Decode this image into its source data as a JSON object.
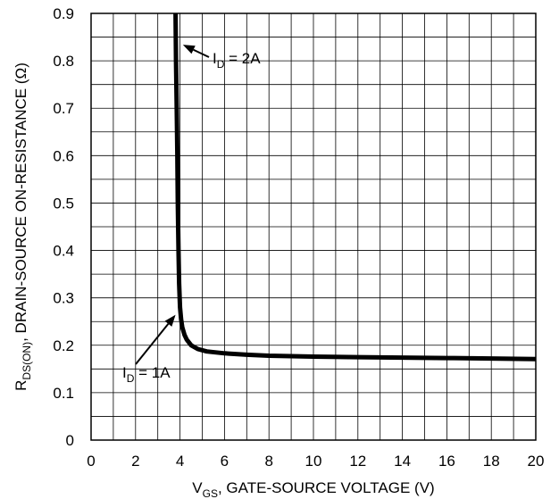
{
  "chart_data": {
    "type": "line",
    "xlabel": {
      "main": "V",
      "sub": "GS",
      "rest": ", GATE-SOURCE VOLTAGE (V)"
    },
    "ylabel": {
      "main": "R",
      "sub": "DS(ON)",
      "rest": ", DRAIN-SOURCE ON-RESISTANCE (Ω)"
    },
    "xlim": [
      0,
      20
    ],
    "ylim": [
      0,
      0.9
    ],
    "x_ticks": [
      "0",
      "2",
      "4",
      "6",
      "8",
      "10",
      "12",
      "14",
      "16",
      "18",
      "20"
    ],
    "y_ticks": [
      "0",
      "0.1",
      "0.2",
      "0.3",
      "0.4",
      "0.5",
      "0.6",
      "0.7",
      "0.8",
      "0.9"
    ],
    "grid": {
      "x_minor_step": 1,
      "y_minor_step": 0.05
    },
    "series": [
      {
        "x": [
          3.8,
          3.82,
          3.85,
          3.88,
          3.9,
          3.93,
          3.96,
          4.0,
          4.05,
          4.1,
          4.2,
          4.3,
          4.5,
          4.8,
          5.2,
          6,
          7,
          8,
          10,
          12,
          14,
          16,
          18,
          20
        ],
        "y": [
          0.9,
          0.8,
          0.7,
          0.6,
          0.5,
          0.4,
          0.33,
          0.28,
          0.255,
          0.238,
          0.222,
          0.212,
          0.2,
          0.192,
          0.187,
          0.183,
          0.18,
          0.178,
          0.176,
          0.175,
          0.174,
          0.173,
          0.172,
          0.171
        ]
      }
    ],
    "annotations": [
      {
        "main": "I",
        "sub": "D",
        "rest": " = 2A",
        "target_x": 4.05,
        "target_y": 0.83
      },
      {
        "main": "I",
        "sub": "D",
        "rest": " = 1A",
        "target_x": 4.0,
        "target_y": 0.27
      }
    ]
  }
}
